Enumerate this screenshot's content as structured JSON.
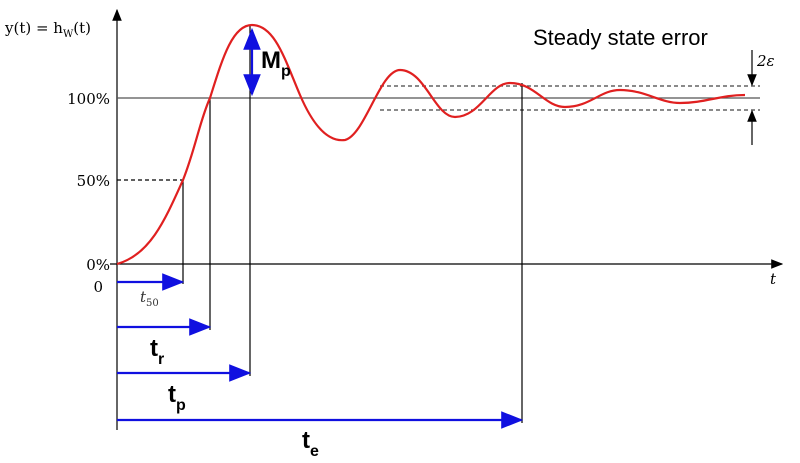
{
  "axis": {
    "y_label": {
      "main": "y(t) = h",
      "sub": "W",
      "end": "(t)"
    },
    "x_label": "t",
    "levels": [
      "100%",
      "50%",
      "0%"
    ],
    "origin": "0"
  },
  "times": {
    "t50": {
      "main": "t",
      "sub": "50"
    },
    "tr": {
      "main": "t",
      "sub": "r"
    },
    "tp": {
      "main": "t",
      "sub": "p"
    },
    "te": {
      "main": "t",
      "sub": "e"
    }
  },
  "overshoot": {
    "main": "M",
    "sub": "p"
  },
  "steady_state": {
    "title": "Steady state error",
    "band": "2ε"
  }
}
